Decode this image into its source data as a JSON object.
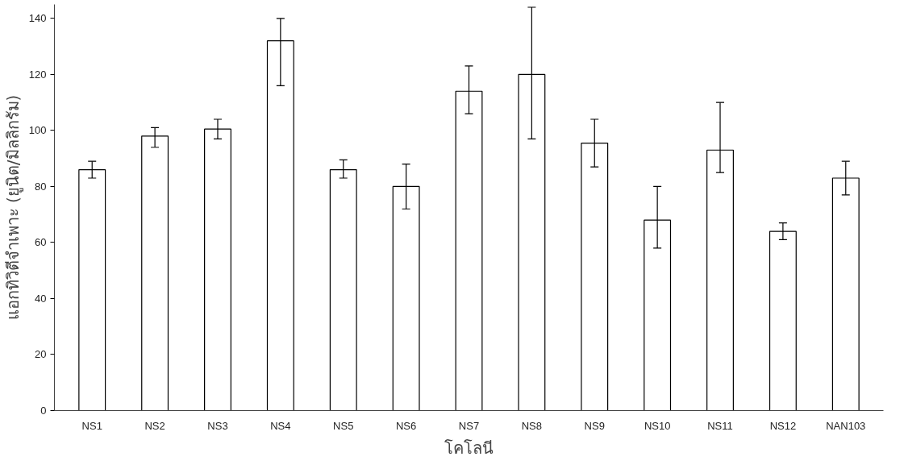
{
  "chart_data": {
    "type": "bar",
    "xlabel": "โคโลนี",
    "ylabel": "แอกทิวิตีจำเพาะ (ยูนิต/มิลลิกรัม)",
    "categories": [
      "NS1",
      "NS2",
      "NS3",
      "NS4",
      "NS5",
      "NS6",
      "NS7",
      "NS8",
      "NS9",
      "NS10",
      "NS11",
      "NS12",
      "NAN103"
    ],
    "values": [
      86,
      98,
      100.5,
      132,
      86,
      80,
      114,
      120,
      95.5,
      68,
      93,
      64,
      83
    ],
    "errors": [
      [
        83,
        89
      ],
      [
        94,
        101
      ],
      [
        97,
        104
      ],
      [
        116,
        140
      ],
      [
        83,
        89.5
      ],
      [
        72,
        88
      ],
      [
        106,
        123
      ],
      [
        97,
        144
      ],
      [
        87,
        104
      ],
      [
        58,
        80
      ],
      [
        85,
        110
      ],
      [
        61,
        67
      ],
      [
        77,
        89
      ]
    ],
    "color": "#ffffff",
    "ylim": [
      0,
      145
    ],
    "yticks": [
      0,
      20,
      40,
      60,
      80,
      100,
      120,
      140
    ],
    "grid": false
  }
}
